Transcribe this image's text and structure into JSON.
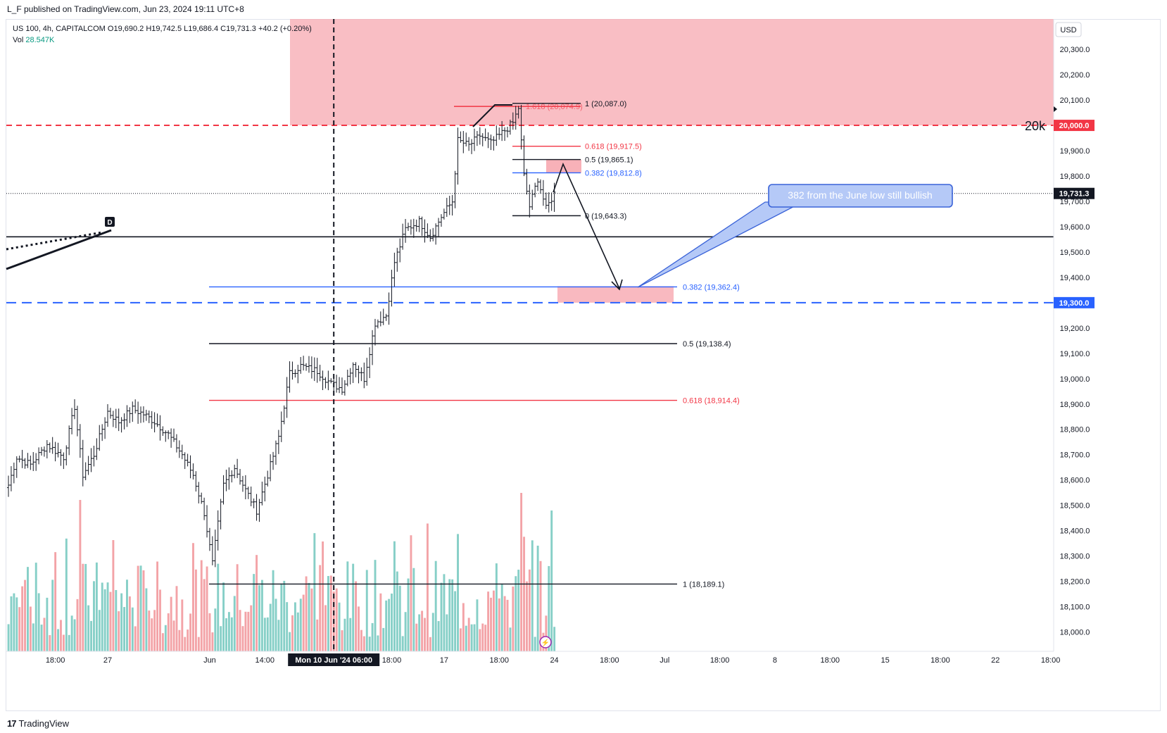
{
  "header": {
    "published": "L_F published on TradingView.com, Jun 23, 2024 19:11 UTC+8"
  },
  "legend": {
    "symbol_line": "US 100, 4h, CAPITALCOM  O19,690.2  H19,742.5  L19,686.4  C19,731.3  +40.2 (+0.20%)",
    "vol_label": "Vol",
    "vol_value": "28.547K"
  },
  "axis": {
    "currency": "USD"
  },
  "footer": {
    "brand": "TradingView"
  },
  "colors": {
    "up": "#089981",
    "down": "#f23645",
    "zone": "#f7a8b0",
    "blue": "#2962ff",
    "red": "#f23645",
    "vol_up": "#86cfc7",
    "vol_down": "#f3a3a7"
  },
  "chart_data": {
    "type": "candlestick",
    "symbol": "US 100",
    "timeframe": "4h",
    "y_range": [
      17950,
      20450
    ],
    "y_ticks": [
      18000,
      18100,
      18200,
      18300,
      18400,
      18500,
      18600,
      18700,
      18800,
      18900,
      19000,
      19100,
      19200,
      19300,
      19400,
      19500,
      19600,
      19700,
      19800,
      19900,
      20000,
      20100,
      20200,
      20300
    ],
    "y_tick_labels": [
      "18,000.0",
      "18,100.0",
      "18,200.0",
      "18,300.0",
      "18,400.0",
      "18,500.0",
      "18,600.0",
      "18,700.0",
      "18,800.0",
      "18,900.0",
      "19,000.0",
      "19,100.0",
      "19,200.0",
      "19,300.0",
      "19,400.0",
      "19,500.0",
      "19,600.0",
      "19,700.0",
      "19,800.0",
      "19,900.0",
      "20,000.0",
      "20,100.0",
      "20,200.0",
      "20,300.0"
    ],
    "price_badges": [
      {
        "value": 20000.0,
        "label": "20,000.0",
        "color": "#f23645"
      },
      {
        "value": 19731.3,
        "label": "19,731.3",
        "color": "#131722"
      },
      {
        "value": 19300.0,
        "label": "19,300.0",
        "color": "#2962ff"
      }
    ],
    "x_ticks": [
      {
        "bar": 17,
        "label": "18:00"
      },
      {
        "bar": 36,
        "label": "27"
      },
      {
        "bar": 73,
        "label": "Jun"
      },
      {
        "bar": 93,
        "label": "14:00"
      },
      {
        "bar": 139,
        "label": "18:00"
      },
      {
        "bar": 158,
        "label": "17"
      },
      {
        "bar": 178,
        "label": "18:00"
      },
      {
        "bar": 198,
        "label": "24"
      },
      {
        "bar": 218,
        "label": "18:00"
      },
      {
        "bar": 238,
        "label": "Jul"
      },
      {
        "bar": 258,
        "label": "18:00"
      },
      {
        "bar": 278,
        "label": "8"
      },
      {
        "bar": 298,
        "label": "18:00"
      },
      {
        "bar": 318,
        "label": "15"
      },
      {
        "bar": 338,
        "label": "18:00"
      },
      {
        "bar": 358,
        "label": "22"
      },
      {
        "bar": 378,
        "label": "18:00"
      }
    ],
    "crosshair": {
      "bar": 118,
      "label": "Mon 10 Jun '24   06:00"
    },
    "anchors": [
      {
        "bar": 0,
        "price": 18580
      },
      {
        "bar": 3,
        "price": 18690
      },
      {
        "bar": 8,
        "price": 18660
      },
      {
        "bar": 14,
        "price": 18740
      },
      {
        "bar": 20,
        "price": 18690
      },
      {
        "bar": 24,
        "price": 18890
      },
      {
        "bar": 27,
        "price": 18620
      },
      {
        "bar": 31,
        "price": 18700
      },
      {
        "bar": 36,
        "price": 18870
      },
      {
        "bar": 40,
        "price": 18830
      },
      {
        "bar": 45,
        "price": 18880
      },
      {
        "bar": 49,
        "price": 18860
      },
      {
        "bar": 53,
        "price": 18830
      },
      {
        "bar": 58,
        "price": 18780
      },
      {
        "bar": 63,
        "price": 18700
      },
      {
        "bar": 67,
        "price": 18620
      },
      {
        "bar": 71,
        "price": 18470
      },
      {
        "bar": 74,
        "price": 18270
      },
      {
        "bar": 78,
        "price": 18580
      },
      {
        "bar": 82,
        "price": 18650
      },
      {
        "bar": 86,
        "price": 18560
      },
      {
        "bar": 90,
        "price": 18480
      },
      {
        "bar": 94,
        "price": 18620
      },
      {
        "bar": 98,
        "price": 18770
      },
      {
        "bar": 102,
        "price": 19020
      },
      {
        "bar": 106,
        "price": 19050
      },
      {
        "bar": 112,
        "price": 19030
      },
      {
        "bar": 117,
        "price": 18980
      },
      {
        "bar": 121,
        "price": 18960
      },
      {
        "bar": 125,
        "price": 19060
      },
      {
        "bar": 129,
        "price": 19000
      },
      {
        "bar": 133,
        "price": 19220
      },
      {
        "bar": 137,
        "price": 19250
      },
      {
        "bar": 140,
        "price": 19460
      },
      {
        "bar": 144,
        "price": 19590
      },
      {
        "bar": 149,
        "price": 19620
      },
      {
        "bar": 153,
        "price": 19560
      },
      {
        "bar": 157,
        "price": 19640
      },
      {
        "bar": 161,
        "price": 19700
      },
      {
        "bar": 163,
        "price": 19940
      },
      {
        "bar": 167,
        "price": 19920
      },
      {
        "bar": 171,
        "price": 19960
      },
      {
        "bar": 175,
        "price": 19930
      },
      {
        "bar": 179,
        "price": 19970
      },
      {
        "bar": 183,
        "price": 20010
      },
      {
        "bar": 185,
        "price": 20070
      },
      {
        "bar": 187,
        "price": 19800
      },
      {
        "bar": 189,
        "price": 19680
      },
      {
        "bar": 192,
        "price": 19790
      },
      {
        "bar": 195,
        "price": 19670
      },
      {
        "bar": 198,
        "price": 19731
      }
    ],
    "bar_count": 199,
    "fibs_top": [
      {
        "level": "1.618",
        "value": 20074.9,
        "label": "1.618 (20,074.9)",
        "color": "#f23645"
      },
      {
        "level": "1",
        "value": 20087.0,
        "label": "1 (20,087.0)",
        "color": "#131722"
      },
      {
        "level": "0.618",
        "value": 19917.5,
        "label": "0.618 (19,917.5)",
        "color": "#f23645"
      },
      {
        "level": "0.5",
        "value": 19865.1,
        "label": "0.5 (19,865.1)",
        "color": "#131722"
      },
      {
        "level": "0.382",
        "value": 19812.8,
        "label": "0.382 (19,812.8)",
        "color": "#2962ff"
      },
      {
        "level": "0",
        "value": 19643.3,
        "label": "0 (19,643.3)",
        "color": "#131722"
      }
    ],
    "fibs_june": [
      {
        "level": "0.382",
        "value": 19362.4,
        "label": "0.382 (19,362.4)",
        "color": "#2962ff"
      },
      {
        "level": "0.5",
        "value": 19138.4,
        "label": "0.5 (19,138.4)",
        "color": "#131722"
      },
      {
        "level": "0.618",
        "value": 18914.4,
        "label": "0.618 (18,914.4)",
        "color": "#f23645"
      },
      {
        "level": "1",
        "value": 18189.1,
        "label": "1 (18,189.1)",
        "color": "#131722"
      }
    ],
    "horizontal_lines": [
      {
        "value": 20000,
        "style": "dashed",
        "color": "#f23645"
      },
      {
        "value": 19300,
        "style": "dashed",
        "color": "#2962ff"
      },
      {
        "value": 19560,
        "style": "solid",
        "color": "#131722"
      }
    ],
    "resistance_zone": {
      "from": 20000,
      "to": 20420
    },
    "target_zone": {
      "from": 19300,
      "to": 19365
    },
    "retest_zone": {
      "from": 19812,
      "to": 19865
    },
    "annotations": {
      "level_20k": "20k",
      "callout": "382 from the June low still bullish",
      "trendline_marker": "D"
    }
  }
}
